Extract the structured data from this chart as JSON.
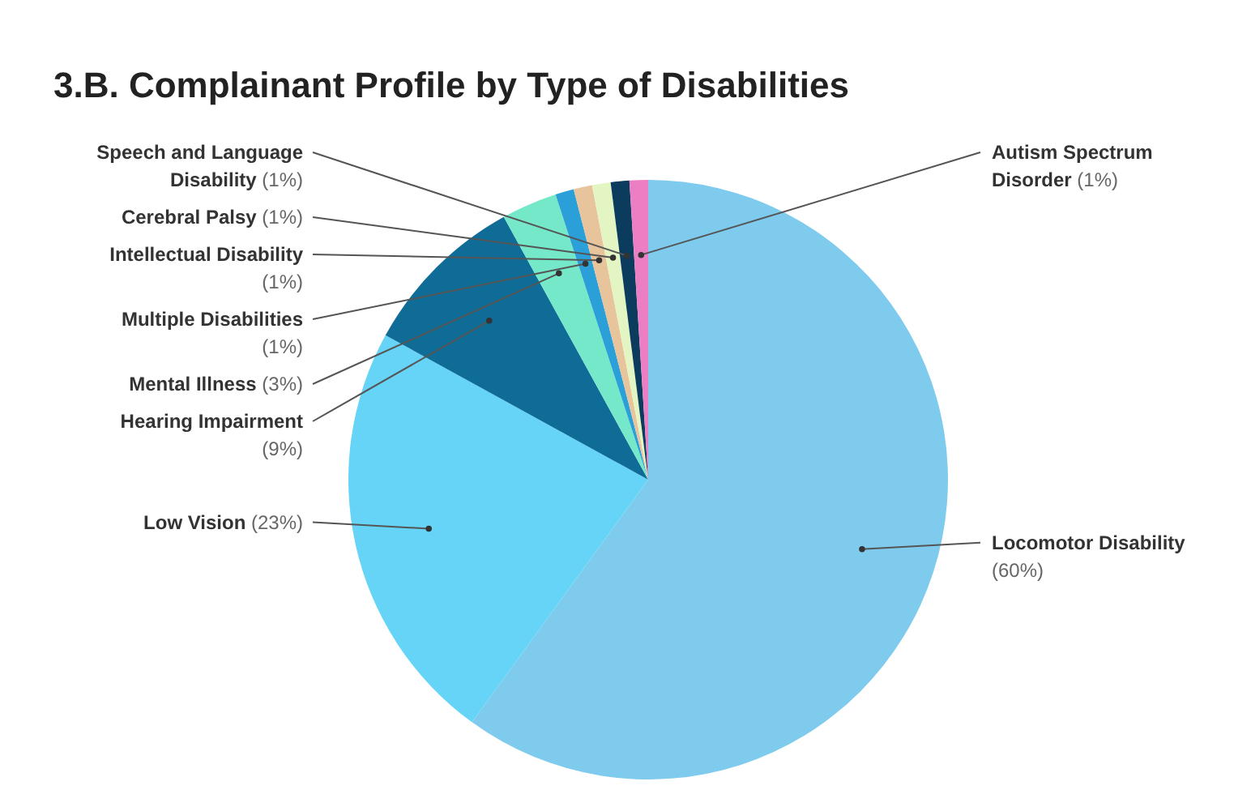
{
  "chart_data": {
    "type": "pie",
    "title": "3.B. Complainant Profile by Type of Disabilities",
    "categories": [
      "Locomotor Disability",
      "Low Vision",
      "Hearing Impairment",
      "Mental Illness",
      "Multiple Disabilities",
      "Intellectual Disability",
      "Cerebral Palsy",
      "Speech and Language Disability",
      "Autism Spectrum Disorder"
    ],
    "values": [
      60,
      23,
      9,
      3,
      1,
      1,
      1,
      1,
      1
    ],
    "value_labels": [
      "(60%)",
      "(23%)",
      "(9%)",
      "(3%)",
      "(1%)",
      "(1%)",
      "(1%)",
      "(1%)",
      "(1%)"
    ],
    "colors": [
      "#7ecbee",
      "#66d4f7",
      "#0e6c96",
      "#74e8c9",
      "#2b9fd8",
      "#e8c49c",
      "#e3f5c2",
      "#0b3c5d",
      "#ec7fc4"
    ]
  }
}
